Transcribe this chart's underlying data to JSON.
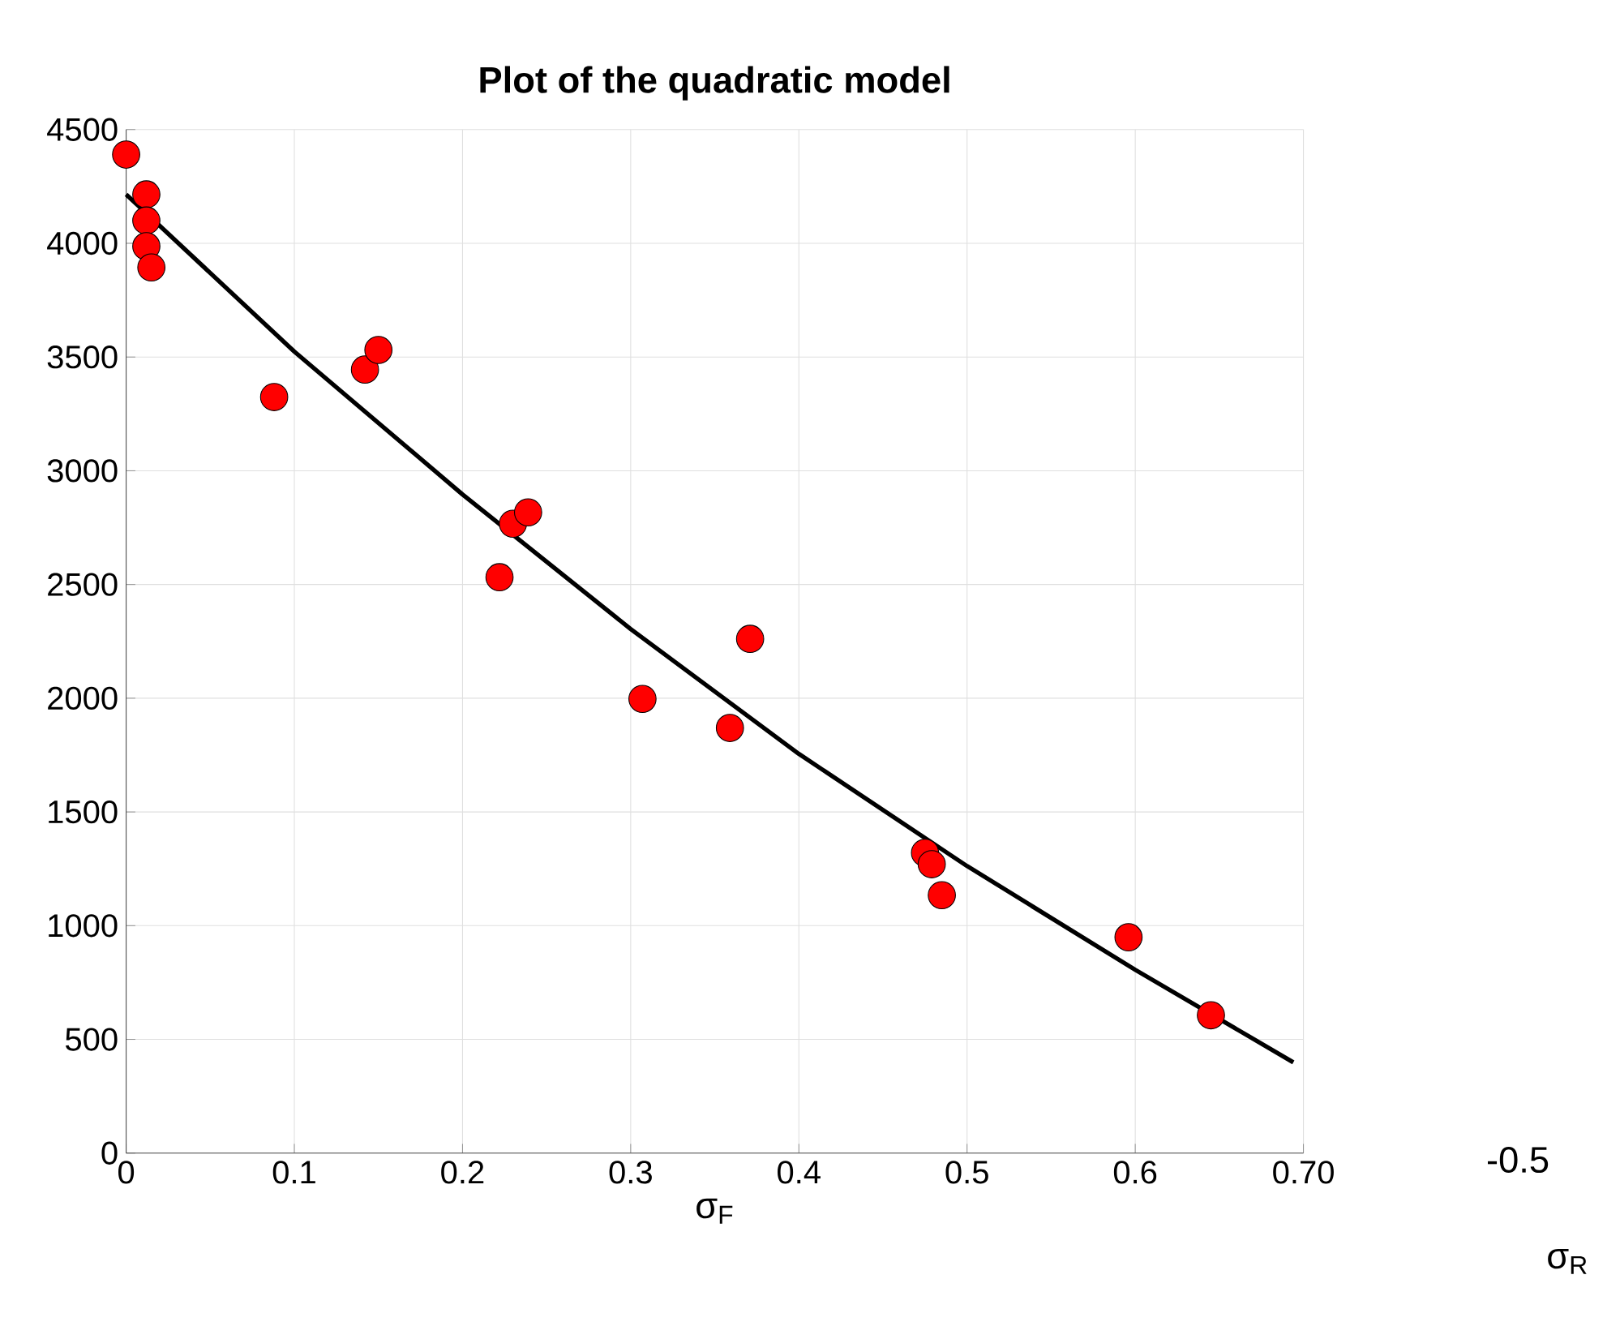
{
  "chart_data": {
    "type": "scatter",
    "title": "Plot of the quadratic model",
    "xlabel": "σ$_{F}$",
    "annotations": [
      "σ$_{R}$",
      "-0.5"
    ],
    "xlim": [
      0,
      0.7
    ],
    "ylim": [
      0,
      4500
    ],
    "xticks": [
      0,
      0.1,
      0.2,
      0.3,
      0.4,
      0.5,
      0.6,
      {
        "value": 0.7,
        "label": "0.70"
      }
    ],
    "yticks": [
      0,
      500,
      1000,
      1500,
      2000,
      2500,
      3000,
      3500,
      4000,
      4500
    ],
    "grid": true,
    "series": [
      {
        "type": "line",
        "color": "#000000",
        "marker": "none",
        "x": [
          0,
          0.1,
          0.2,
          0.3,
          0.4,
          0.5,
          0.6,
          0.694
        ],
        "values": [
          4215,
          3524,
          2896,
          2304,
          1755,
          1262,
          806,
          399
        ]
      },
      {
        "color": "#ff0000",
        "marker": "circle",
        "x": [
          0,
          0.012,
          0.012,
          0.012,
          0.015,
          0.088,
          0.142,
          0.15,
          0.222,
          0.23,
          0.239,
          0.307,
          0.359,
          0.371,
          0.475,
          0.479,
          0.485,
          0.596,
          0.645
        ],
        "values": [
          4390,
          4215,
          4100,
          3987,
          3894,
          3324,
          3445,
          3531,
          2532,
          2767,
          2817,
          1997,
          1869,
          2261,
          1320,
          1270,
          1134,
          949,
          606
        ]
      }
    ]
  }
}
